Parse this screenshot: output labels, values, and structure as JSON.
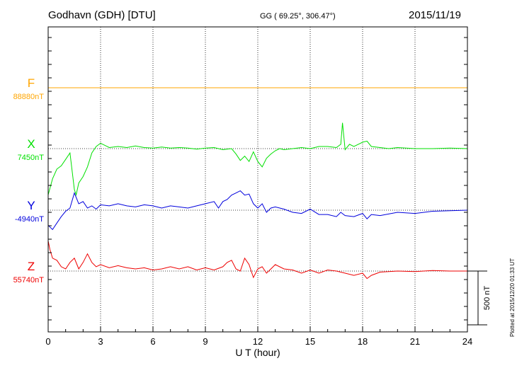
{
  "header": {
    "station": "Godhavn (GDH)  [DTU]",
    "coords": "GG ( 69.25°, 306.47°)",
    "date": "2015/11/19"
  },
  "footer": {
    "plotted": "Plotted at 2015/12/20 01:33 UT"
  },
  "chart_data": {
    "type": "line",
    "xlabel": "U T (hour)",
    "xlim": [
      0,
      24
    ],
    "x_ticks": [
      "0",
      "3",
      "6",
      "9",
      "12",
      "15",
      "18",
      "21",
      "24"
    ],
    "grid": "vertical dotted lines every 3 hours",
    "scale_bar": {
      "label": "500 nT",
      "value_nT": 500
    },
    "series": [
      {
        "name": "F",
        "baseline_label": "88880nT",
        "baseline_nT": 88880,
        "color": "#ffa500",
        "x": [
          0,
          24
        ],
        "deviation_nT": [
          0,
          0
        ]
      },
      {
        "name": "X",
        "baseline_label": "7450nT",
        "baseline_nT": 7450,
        "color": "#00e000",
        "x": [
          0,
          0.25,
          0.5,
          0.75,
          1.0,
          1.25,
          1.5,
          1.6,
          1.75,
          2.0,
          2.25,
          2.5,
          2.75,
          3.0,
          3.25,
          3.5,
          4.0,
          4.5,
          5.0,
          5.5,
          6.0,
          6.5,
          7.0,
          7.5,
          8.0,
          8.5,
          9.0,
          9.5,
          10.0,
          10.5,
          10.75,
          11.0,
          11.25,
          11.5,
          11.75,
          12.0,
          12.25,
          12.5,
          12.75,
          13.0,
          13.25,
          13.5,
          14.0,
          14.5,
          15.0,
          15.5,
          16.0,
          16.5,
          16.75,
          16.85,
          17.0,
          17.25,
          17.5,
          18.0,
          18.25,
          18.5,
          19.0,
          19.5,
          20.0,
          21.0,
          22.0,
          23.0,
          24.0
        ],
        "deviation_nT": [
          -430,
          -280,
          -190,
          -160,
          -100,
          -40,
          -380,
          -430,
          -320,
          -260,
          -170,
          -40,
          20,
          50,
          30,
          10,
          20,
          10,
          25,
          10,
          5,
          15,
          5,
          10,
          5,
          -5,
          5,
          10,
          -10,
          0,
          -50,
          -110,
          -70,
          -120,
          -30,
          -120,
          -170,
          -90,
          -50,
          -20,
          0,
          -10,
          0,
          10,
          0,
          20,
          20,
          10,
          40,
          240,
          -10,
          40,
          20,
          60,
          70,
          20,
          10,
          0,
          10,
          0,
          0,
          5,
          0
        ]
      },
      {
        "name": "Y",
        "baseline_label": "-4940nT",
        "baseline_nT": -4940,
        "color": "#0000dd",
        "x": [
          0,
          0.25,
          0.5,
          0.75,
          1.0,
          1.25,
          1.5,
          1.75,
          2.0,
          2.25,
          2.5,
          2.75,
          3.0,
          3.5,
          4.0,
          4.5,
          5.0,
          5.5,
          6.0,
          6.5,
          7.0,
          7.5,
          8.0,
          8.5,
          9.0,
          9.5,
          9.75,
          10.0,
          10.25,
          10.5,
          10.75,
          11.0,
          11.25,
          11.5,
          11.75,
          12.0,
          12.25,
          12.5,
          12.75,
          13.0,
          13.5,
          14.0,
          14.5,
          15.0,
          15.5,
          16.0,
          16.5,
          16.75,
          17.0,
          17.5,
          18.0,
          18.25,
          18.5,
          19.0,
          20.0,
          21.0,
          22.0,
          23.0,
          24.0
        ],
        "deviation_nT": [
          -140,
          -180,
          -120,
          -60,
          -10,
          20,
          160,
          60,
          80,
          20,
          40,
          10,
          50,
          40,
          60,
          40,
          30,
          50,
          40,
          20,
          40,
          30,
          20,
          40,
          60,
          80,
          20,
          80,
          100,
          140,
          160,
          180,
          140,
          150,
          60,
          20,
          60,
          -20,
          20,
          30,
          10,
          -20,
          -30,
          10,
          -40,
          -40,
          -60,
          -20,
          -50,
          -60,
          -30,
          -80,
          -40,
          -50,
          -20,
          -30,
          -10,
          -5,
          0
        ]
      },
      {
        "name": "Z",
        "baseline_label": "55740nT",
        "baseline_nT": 55740,
        "color": "#ee0000",
        "x": [
          0,
          0.1,
          0.25,
          0.5,
          0.75,
          1.0,
          1.25,
          1.5,
          1.75,
          2.0,
          2.25,
          2.5,
          2.75,
          3.0,
          3.5,
          4.0,
          4.5,
          5.0,
          5.5,
          6.0,
          6.5,
          7.0,
          7.5,
          8.0,
          8.5,
          9.0,
          9.5,
          10.0,
          10.25,
          10.5,
          10.75,
          11.0,
          11.25,
          11.5,
          11.75,
          12.0,
          12.25,
          12.5,
          12.75,
          13.0,
          13.5,
          14.0,
          14.5,
          15.0,
          15.5,
          16.0,
          16.5,
          17.0,
          17.5,
          18.0,
          18.25,
          18.5,
          19.0,
          20.0,
          21.0,
          22.0,
          23.0,
          24.0
        ],
        "deviation_nT": [
          280,
          200,
          120,
          100,
          40,
          20,
          80,
          120,
          20,
          80,
          160,
          80,
          40,
          60,
          30,
          50,
          30,
          20,
          30,
          10,
          20,
          40,
          20,
          40,
          10,
          30,
          10,
          40,
          80,
          100,
          20,
          0,
          120,
          60,
          -60,
          20,
          40,
          -20,
          20,
          60,
          20,
          10,
          -20,
          10,
          -20,
          10,
          0,
          -20,
          -40,
          -20,
          -70,
          -40,
          -10,
          0,
          -5,
          5,
          0,
          0
        ]
      }
    ]
  }
}
